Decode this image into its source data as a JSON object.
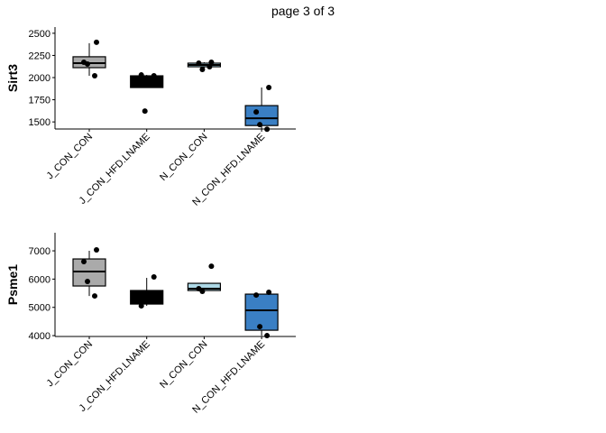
{
  "page_title": "page 3 of 3",
  "chart_data": [
    {
      "type": "box",
      "ylabel": "Sirt3",
      "categories": [
        "J_CON_CON",
        "J_CON_HFD.LNAME",
        "N_CON_CON",
        "N_CON_HFD.LNAME"
      ],
      "colors": [
        "#aaaaaa",
        "#000000",
        "#add8e6",
        "#3a7fc4"
      ],
      "boxes": [
        {
          "whislo": 2020,
          "q1": 2112,
          "med": 2163,
          "q3": 2235,
          "whishi": 2388,
          "points": [
            2398,
            2173,
            2153,
            2020
          ]
        },
        {
          "whislo": 1888,
          "q1": 1888,
          "med": 1960,
          "q3": 2020,
          "whishi": 2030,
          "points": [
            2020,
            2030,
            1622
          ]
        },
        {
          "whislo": 2092,
          "q1": 2122,
          "med": 2143,
          "q3": 2163,
          "whishi": 2173,
          "points": [
            2173,
            2163,
            2092,
            2122
          ]
        },
        {
          "whislo": 1418,
          "q1": 1459,
          "med": 1541,
          "q3": 1684,
          "whishi": 1888,
          "points": [
            1888,
            1612,
            1469,
            1418
          ]
        }
      ],
      "ylim": [
        1420,
        2570
      ],
      "yticks": [
        1500,
        1750,
        2000,
        2250,
        2500
      ]
    },
    {
      "type": "box",
      "ylabel": "Psme1",
      "categories": [
        "J_CON_CON",
        "J_CON_HFD.LNAME",
        "N_CON_CON",
        "N_CON_HFD.LNAME"
      ],
      "colors": [
        "#aaaaaa",
        "#000000",
        "#add8e6",
        "#3a7fc4"
      ],
      "boxes": [
        {
          "whislo": 5404,
          "q1": 5756,
          "med": 6266,
          "q3": 6713,
          "whishi": 7000,
          "points": [
            7032,
            6617,
            5915,
            5404
          ]
        },
        {
          "whislo": 5053,
          "q1": 5117,
          "med": 5300,
          "q3": 5596,
          "whishi": 6043,
          "points": [
            6075,
            5053
          ]
        },
        {
          "whislo": 5564,
          "q1": 5596,
          "med": 5660,
          "q3": 5851,
          "whishi": 5851,
          "points": [
            6457,
            5660,
            5564
          ]
        },
        {
          "whislo": 4000,
          "q1": 4191,
          "med": 4894,
          "q3": 5468,
          "whishi": 5468,
          "points": [
            5532,
            5436,
            4319,
            4000
          ]
        }
      ],
      "ylim": [
        3970,
        7640
      ],
      "yticks": [
        4000,
        5000,
        6000,
        7000
      ]
    }
  ]
}
